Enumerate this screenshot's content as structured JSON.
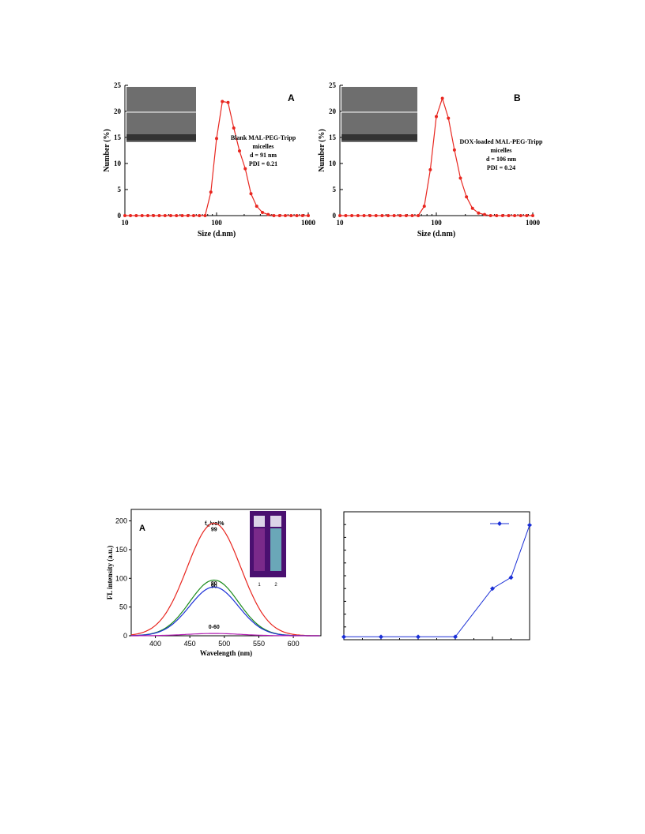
{
  "chart_data": [
    {
      "type": "line",
      "panel_label": "A",
      "xlabel": "Size (d.nm)",
      "ylabel": "Number (%)",
      "x_scale": "log",
      "xlim": [
        10,
        1000
      ],
      "ylim": [
        0,
        25
      ],
      "x_ticks": [
        "10",
        "100",
        "1000"
      ],
      "y_ticks": [
        "0",
        "5",
        "10",
        "15",
        "20",
        "25"
      ],
      "color": "#e8261f",
      "annotation": [
        "Blank MAL-PEG-Tripp",
        "micelles",
        "d = 91 nm",
        "PDI = 0.21"
      ],
      "inset": "TEM image",
      "series": [
        {
          "x": [
            10,
            11.5,
            13.3,
            15.4,
            17.8,
            20.5,
            23.7,
            27.4,
            31.6,
            36.5,
            42.2,
            48.7,
            56.2,
            64.9,
            75,
            86.6,
            100,
            115.5,
            133.4,
            154,
            177.8,
            205.4,
            237.1,
            273.8,
            316.2,
            365.2,
            421.7,
            487,
            562.3,
            649.4,
            749.9,
            866,
            1000
          ],
          "y": [
            0,
            0,
            0,
            0,
            0,
            0,
            0,
            0,
            0,
            0,
            0,
            0,
            0,
            0,
            0,
            4.5,
            14.8,
            21.9,
            21.7,
            16.8,
            12.4,
            9.0,
            4.2,
            1.8,
            0.6,
            0.2,
            0,
            0,
            0,
            0,
            0,
            0,
            0
          ]
        }
      ]
    },
    {
      "type": "line",
      "panel_label": "B",
      "xlabel": "Size (d.nm)",
      "ylabel": "Number (%)",
      "x_scale": "log",
      "xlim": [
        10,
        1000
      ],
      "ylim": [
        0,
        25
      ],
      "x_ticks": [
        "10",
        "100",
        "1000"
      ],
      "y_ticks": [
        "0",
        "5",
        "10",
        "15",
        "20",
        "25"
      ],
      "color": "#e8261f",
      "annotation": [
        "DOX-loaded MAL-PEG-Tripp",
        "micelles",
        "d = 106 nm",
        "PDI = 0.24"
      ],
      "inset": "TEM image",
      "series": [
        {
          "x": [
            10,
            11.5,
            13.3,
            15.4,
            17.8,
            20.5,
            23.7,
            27.4,
            31.6,
            36.5,
            42.2,
            48.7,
            56.2,
            64.9,
            75,
            86.6,
            100,
            115.5,
            133.4,
            154,
            177.8,
            205.4,
            237.1,
            273.8,
            316.2,
            365.2,
            421.7,
            487,
            562.3,
            649.4,
            749.9,
            866,
            1000
          ],
          "y": [
            0,
            0,
            0,
            0,
            0,
            0,
            0,
            0,
            0,
            0,
            0,
            0,
            0,
            0,
            1.8,
            8.8,
            19.0,
            22.5,
            18.7,
            12.6,
            7.2,
            3.6,
            1.4,
            0.5,
            0.2,
            0,
            0,
            0,
            0,
            0,
            0,
            0,
            0
          ]
        }
      ]
    },
    {
      "type": "line",
      "panel_label": "A",
      "xlabel": "Wavelength (nm)",
      "ylabel": "FL intensity (a.u.)",
      "xlim": [
        365,
        640
      ],
      "ylim": [
        0,
        220
      ],
      "x_ticks": [
        "400",
        "450",
        "500",
        "550",
        "600"
      ],
      "y_ticks": [
        "0",
        "50",
        "100",
        "150",
        "200"
      ],
      "legend_title": "f",
      "legend_title_sub": "w",
      "legend_title_rest": "/vol%",
      "inset_labels": [
        "1",
        "2"
      ],
      "series": [
        {
          "name": "99",
          "color": "#e8261f",
          "peak": 196,
          "center": 485,
          "width": 55
        },
        {
          "name": "90",
          "color": "#1a8a1a",
          "peak": 97,
          "center": 485,
          "width": 50
        },
        {
          "name": "80",
          "color": "#1a2fd6",
          "peak": 85,
          "center": 485,
          "width": 50
        },
        {
          "name": "0-60",
          "color": "#b01ab0",
          "peak": 4,
          "center": 485,
          "width": 55
        }
      ]
    },
    {
      "type": "line",
      "color": "#1a2fd6",
      "ylim": [
        0,
        220
      ],
      "series": [
        {
          "x": [
            0,
            1,
            2,
            3,
            4,
            4.5,
            5
          ],
          "y": [
            5,
            5,
            5,
            5,
            88,
            107,
            197
          ]
        }
      ]
    }
  ]
}
